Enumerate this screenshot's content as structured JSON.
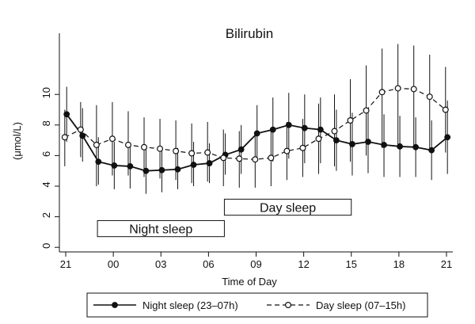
{
  "chart_data": {
    "type": "line",
    "title": "Bilirubin",
    "xlabel": "Time of Day",
    "ylabel": "(μmol/L)",
    "x": [
      21,
      22,
      23,
      24,
      25,
      26,
      27,
      28,
      29,
      30,
      31,
      32,
      33,
      34,
      35,
      36,
      37,
      38,
      39,
      40,
      41,
      42,
      43,
      44,
      45
    ],
    "xticks": [
      21,
      24,
      27,
      30,
      33,
      36,
      39,
      42,
      45
    ],
    "xtick_labels": [
      "21",
      "00",
      "03",
      "06",
      "09",
      "12",
      "15",
      "18",
      "21"
    ],
    "xlim": [
      20.6,
      45.4
    ],
    "ylim": [
      -0.3,
      14
    ],
    "yticks": [
      0,
      2,
      4,
      6,
      8,
      10
    ],
    "ytick_labels": [
      "0",
      "2",
      "4",
      "6",
      "8",
      "10"
    ],
    "grid": false,
    "legend_position": "bottom",
    "series": [
      {
        "name": "Night sleep (23–07h)",
        "style": "solid",
        "marker": "filled-circle",
        "color": "#111111",
        "values": [
          8.7,
          7.3,
          5.6,
          5.35,
          5.3,
          5.0,
          5.05,
          5.1,
          5.4,
          5.5,
          6.05,
          6.4,
          7.45,
          7.7,
          8.0,
          7.8,
          7.7,
          7.0,
          6.75,
          6.9,
          6.7,
          6.6,
          6.55,
          6.35,
          7.2
        ],
        "error_low": [
          6.9,
          5.6,
          4.1,
          3.8,
          3.85,
          3.5,
          3.6,
          3.8,
          4.0,
          4.2,
          4.75,
          4.8,
          5.6,
          5.6,
          5.8,
          5.5,
          5.5,
          5.0,
          4.7,
          4.85,
          4.6,
          4.6,
          4.6,
          4.4,
          4.8
        ],
        "error_high": [
          10.5,
          9.1,
          7.2,
          6.9,
          6.8,
          6.5,
          6.5,
          6.5,
          6.9,
          6.8,
          7.45,
          8.0,
          9.3,
          9.8,
          10.1,
          10.0,
          9.8,
          9.0,
          8.8,
          8.9,
          8.7,
          8.6,
          8.5,
          8.3,
          9.6
        ]
      },
      {
        "name": "Day sleep (07–15h)",
        "style": "dashed",
        "marker": "open-circle",
        "color": "#111111",
        "values": [
          7.2,
          7.7,
          6.7,
          7.1,
          6.7,
          6.55,
          6.45,
          6.3,
          6.15,
          6.2,
          5.85,
          5.8,
          5.75,
          5.85,
          6.3,
          6.5,
          7.1,
          7.6,
          8.3,
          8.95,
          10.15,
          10.4,
          10.35,
          9.85,
          9.0
        ],
        "error_low": [
          5.3,
          5.9,
          4.0,
          4.7,
          4.7,
          4.6,
          4.5,
          4.4,
          4.2,
          4.3,
          4.0,
          3.9,
          3.9,
          4.0,
          4.4,
          4.6,
          4.8,
          5.3,
          5.6,
          6.0,
          6.5,
          6.6,
          6.5,
          6.4,
          6.2
        ],
        "error_high": [
          9.0,
          9.5,
          9.3,
          9.5,
          8.9,
          8.5,
          8.4,
          8.3,
          8.1,
          8.2,
          7.7,
          7.6,
          7.6,
          7.7,
          8.2,
          8.4,
          9.4,
          10.0,
          11.0,
          11.9,
          13.0,
          13.3,
          13.2,
          12.6,
          11.8
        ]
      }
    ],
    "annotations": [
      {
        "label": "Night sleep",
        "x_start": 23,
        "x_end": 31,
        "y_low": 0.7,
        "y_high": 1.75
      },
      {
        "label": "Day sleep",
        "x_start": 31,
        "x_end": 39,
        "y_low": 2.1,
        "y_high": 3.15
      }
    ],
    "legend": {
      "entries": [
        "Night sleep (23–07h)",
        "Day sleep (07–15h)"
      ]
    }
  }
}
